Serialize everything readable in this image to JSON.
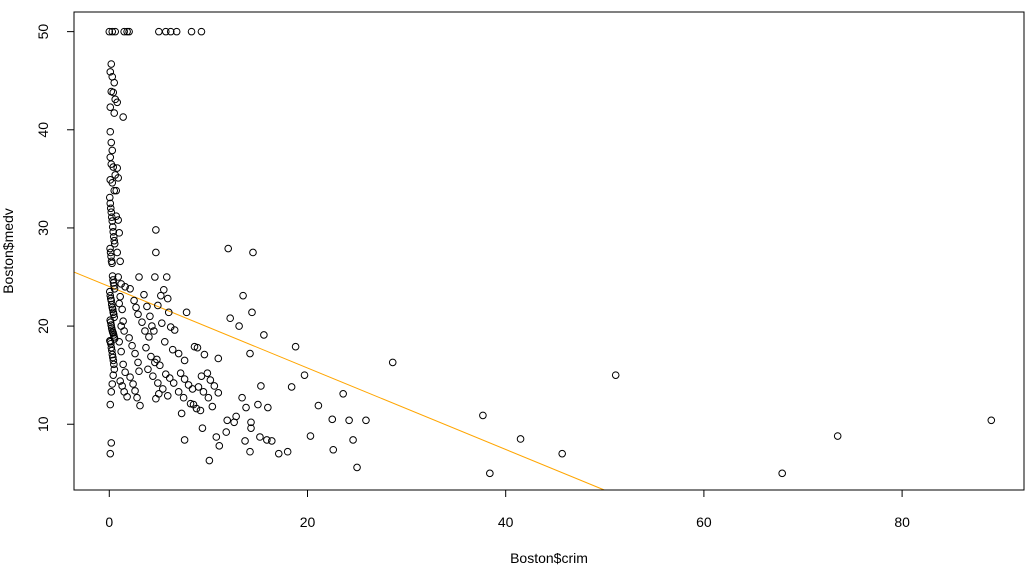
{
  "chart_data": {
    "type": "scatter",
    "title": "",
    "xlabel": "Boston$crim",
    "ylabel": "Boston$medv",
    "xlim": [
      -3.56,
      92.3
    ],
    "ylim": [
      3.3,
      52.0
    ],
    "x_ticks": [
      0,
      20,
      40,
      60,
      80
    ],
    "y_ticks": [
      10,
      20,
      30,
      40,
      50
    ],
    "grid": false,
    "legend": "none",
    "point_color": "#000000",
    "fit_line": {
      "intercept": 24.03,
      "slope": -0.415,
      "color": "#FFA500"
    },
    "points": [
      [
        0.0,
        50
      ],
      [
        0.3,
        50
      ],
      [
        0.6,
        50
      ],
      [
        1.5,
        50
      ],
      [
        1.8,
        50
      ],
      [
        2.0,
        50
      ],
      [
        5.0,
        50
      ],
      [
        5.7,
        50
      ],
      [
        6.2,
        50
      ],
      [
        6.8,
        50
      ],
      [
        8.3,
        50
      ],
      [
        9.3,
        50
      ],
      [
        0.1,
        45.9
      ],
      [
        0.2,
        46.7
      ],
      [
        0.3,
        45.4
      ],
      [
        0.5,
        44.8
      ],
      [
        0.2,
        43.9
      ],
      [
        0.4,
        43.8
      ],
      [
        0.6,
        43.1
      ],
      [
        0.8,
        42.8
      ],
      [
        0.1,
        42.3
      ],
      [
        0.5,
        41.7
      ],
      [
        1.4,
        41.3
      ],
      [
        0.1,
        39.8
      ],
      [
        0.2,
        38.7
      ],
      [
        0.3,
        37.9
      ],
      [
        0.1,
        37.2
      ],
      [
        0.2,
        36.5
      ],
      [
        0.4,
        36.2
      ],
      [
        0.6,
        35.4
      ],
      [
        0.8,
        36.1
      ],
      [
        0.9,
        35.1
      ],
      [
        0.1,
        34.9
      ],
      [
        0.3,
        34.6
      ],
      [
        0.5,
        33.8
      ],
      [
        0.7,
        33.8
      ],
      [
        0.05,
        33.1
      ],
      [
        0.1,
        32.5
      ],
      [
        0.15,
        32.0
      ],
      [
        0.2,
        31.6
      ],
      [
        0.25,
        31.1
      ],
      [
        0.3,
        30.7
      ],
      [
        0.35,
        30.1
      ],
      [
        0.4,
        29.6
      ],
      [
        0.45,
        29.1
      ],
      [
        0.5,
        28.7
      ],
      [
        0.55,
        28.4
      ],
      [
        0.08,
        27.9
      ],
      [
        0.13,
        27.5
      ],
      [
        0.18,
        27.1
      ],
      [
        0.23,
        26.6
      ],
      [
        0.28,
        26.4
      ],
      [
        0.33,
        25.1
      ],
      [
        0.38,
        24.7
      ],
      [
        0.43,
        24.4
      ],
      [
        0.48,
        24.1
      ],
      [
        0.53,
        23.8
      ],
      [
        0.05,
        23.5
      ],
      [
        0.1,
        23.1
      ],
      [
        0.15,
        22.8
      ],
      [
        0.2,
        22.6
      ],
      [
        0.25,
        22.2
      ],
      [
        0.3,
        21.9
      ],
      [
        0.35,
        21.7
      ],
      [
        0.4,
        21.4
      ],
      [
        0.45,
        21.2
      ],
      [
        0.5,
        20.9
      ],
      [
        0.09,
        20.6
      ],
      [
        0.14,
        20.4
      ],
      [
        0.19,
        20.1
      ],
      [
        0.24,
        19.8
      ],
      [
        0.29,
        19.6
      ],
      [
        0.34,
        19.4
      ],
      [
        0.39,
        19.3
      ],
      [
        0.44,
        19.1
      ],
      [
        0.49,
        18.9
      ],
      [
        0.54,
        18.7
      ],
      [
        0.06,
        18.5
      ],
      [
        0.11,
        18.4
      ],
      [
        0.16,
        18.2
      ],
      [
        0.21,
        17.8
      ],
      [
        0.26,
        17.5
      ],
      [
        0.31,
        17.1
      ],
      [
        0.36,
        16.8
      ],
      [
        0.41,
        16.5
      ],
      [
        0.46,
        16.1
      ],
      [
        0.51,
        15.6
      ],
      [
        0.7,
        31.2
      ],
      [
        0.9,
        30.8
      ],
      [
        1.0,
        29.5
      ],
      [
        0.8,
        27.5
      ],
      [
        1.1,
        26.6
      ],
      [
        0.9,
        25.0
      ],
      [
        1.2,
        24.3
      ],
      [
        1.1,
        23.0
      ],
      [
        1.0,
        22.3
      ],
      [
        1.3,
        21.7
      ],
      [
        1.4,
        20.5
      ],
      [
        1.2,
        20.0
      ],
      [
        1.5,
        19.5
      ],
      [
        1.0,
        18.4
      ],
      [
        1.2,
        17.4
      ],
      [
        1.4,
        16.1
      ],
      [
        1.6,
        15.3
      ],
      [
        1.1,
        14.4
      ],
      [
        1.3,
        13.9
      ],
      [
        1.5,
        13.3
      ],
      [
        1.8,
        12.8
      ],
      [
        0.1,
        12.0
      ],
      [
        0.2,
        13.3
      ],
      [
        0.3,
        14.1
      ],
      [
        0.4,
        15.0
      ],
      [
        0.2,
        8.1
      ],
      [
        0.1,
        7.0
      ],
      [
        1.6,
        24.0
      ],
      [
        2.1,
        23.8
      ],
      [
        2.5,
        22.6
      ],
      [
        2.7,
        21.9
      ],
      [
        2.9,
        21.2
      ],
      [
        3.3,
        20.4
      ],
      [
        3.6,
        19.5
      ],
      [
        2.0,
        18.8
      ],
      [
        2.3,
        18.0
      ],
      [
        2.6,
        17.2
      ],
      [
        2.9,
        16.3
      ],
      [
        3.0,
        15.4
      ],
      [
        2.1,
        14.8
      ],
      [
        2.4,
        14.1
      ],
      [
        2.6,
        13.4
      ],
      [
        2.8,
        12.7
      ],
      [
        3.1,
        11.9
      ],
      [
        3.0,
        25.0
      ],
      [
        3.5,
        23.2
      ],
      [
        3.8,
        22.0
      ],
      [
        4.1,
        21.0
      ],
      [
        4.3,
        20.0
      ],
      [
        4.5,
        19.5
      ],
      [
        4.0,
        18.9
      ],
      [
        3.7,
        17.8
      ],
      [
        4.2,
        16.9
      ],
      [
        4.6,
        16.3
      ],
      [
        3.9,
        15.6
      ],
      [
        4.4,
        14.9
      ],
      [
        4.9,
        14.2
      ],
      [
        5.0,
        13.1
      ],
      [
        4.7,
        12.6
      ],
      [
        4.7,
        29.8
      ],
      [
        4.7,
        27.5
      ],
      [
        4.6,
        25.0
      ],
      [
        5.8,
        25.0
      ],
      [
        5.5,
        23.7
      ],
      [
        5.2,
        23.1
      ],
      [
        5.9,
        22.8
      ],
      [
        4.9,
        22.1
      ],
      [
        6.0,
        21.4
      ],
      [
        5.3,
        20.3
      ],
      [
        6.2,
        19.9
      ],
      [
        6.6,
        19.6
      ],
      [
        5.6,
        18.4
      ],
      [
        6.4,
        17.6
      ],
      [
        4.8,
        16.6
      ],
      [
        5.1,
        16.0
      ],
      [
        5.7,
        15.1
      ],
      [
        6.1,
        14.7
      ],
      [
        6.5,
        14.2
      ],
      [
        5.4,
        13.6
      ],
      [
        5.9,
        12.9
      ],
      [
        7.0,
        17.2
      ],
      [
        7.6,
        16.5
      ],
      [
        7.2,
        15.2
      ],
      [
        7.6,
        14.6
      ],
      [
        8.0,
        14.0
      ],
      [
        8.4,
        13.6
      ],
      [
        7.0,
        13.3
      ],
      [
        7.5,
        12.7
      ],
      [
        8.2,
        12.1
      ],
      [
        8.8,
        11.6
      ],
      [
        7.3,
        11.1
      ],
      [
        7.8,
        21.4
      ],
      [
        8.6,
        17.9
      ],
      [
        8.9,
        17.8
      ],
      [
        9.6,
        17.1
      ],
      [
        9.3,
        14.9
      ],
      [
        9.9,
        15.2
      ],
      [
        10.2,
        14.5
      ],
      [
        10.6,
        13.9
      ],
      [
        11.0,
        13.2
      ],
      [
        9.0,
        13.8
      ],
      [
        9.5,
        13.3
      ],
      [
        10.0,
        12.7
      ],
      [
        8.5,
        12.0
      ],
      [
        9.2,
        11.4
      ],
      [
        10.4,
        11.8
      ],
      [
        9.4,
        9.6
      ],
      [
        10.1,
        6.3
      ],
      [
        7.6,
        8.4
      ],
      [
        11.0,
        16.7
      ],
      [
        12.0,
        27.9
      ],
      [
        14.5,
        27.5
      ],
      [
        13.5,
        23.1
      ],
      [
        14.4,
        21.4
      ],
      [
        12.2,
        20.8
      ],
      [
        13.1,
        20.0
      ],
      [
        15.6,
        19.1
      ],
      [
        14.2,
        17.2
      ],
      [
        18.8,
        17.9
      ],
      [
        19.7,
        15.0
      ],
      [
        15.3,
        13.9
      ],
      [
        18.4,
        13.8
      ],
      [
        13.4,
        12.7
      ],
      [
        15.0,
        12.0
      ],
      [
        16.0,
        11.7
      ],
      [
        13.8,
        11.7
      ],
      [
        11.9,
        10.4
      ],
      [
        12.6,
        10.2
      ],
      [
        14.3,
        10.2
      ],
      [
        14.3,
        9.6
      ],
      [
        11.8,
        9.2
      ],
      [
        12.8,
        10.8
      ],
      [
        10.8,
        8.7
      ],
      [
        11.1,
        7.8
      ],
      [
        13.7,
        8.3
      ],
      [
        15.9,
        8.4
      ],
      [
        16.4,
        8.3
      ],
      [
        14.2,
        7.2
      ],
      [
        17.1,
        7.0
      ],
      [
        18.0,
        7.2
      ],
      [
        15.2,
        8.7
      ],
      [
        21.1,
        11.9
      ],
      [
        22.5,
        10.5
      ],
      [
        23.6,
        13.1
      ],
      [
        24.2,
        10.4
      ],
      [
        25.9,
        10.4
      ],
      [
        20.3,
        8.8
      ],
      [
        24.6,
        8.4
      ],
      [
        22.6,
        7.4
      ],
      [
        25.0,
        5.6
      ],
      [
        28.6,
        16.3
      ],
      [
        37.7,
        10.9
      ],
      [
        38.4,
        5.0
      ],
      [
        41.5,
        8.5
      ],
      [
        45.7,
        7.0
      ],
      [
        51.1,
        15.0
      ],
      [
        67.9,
        5.0
      ],
      [
        73.5,
        8.8
      ],
      [
        89.0,
        10.4
      ]
    ]
  }
}
